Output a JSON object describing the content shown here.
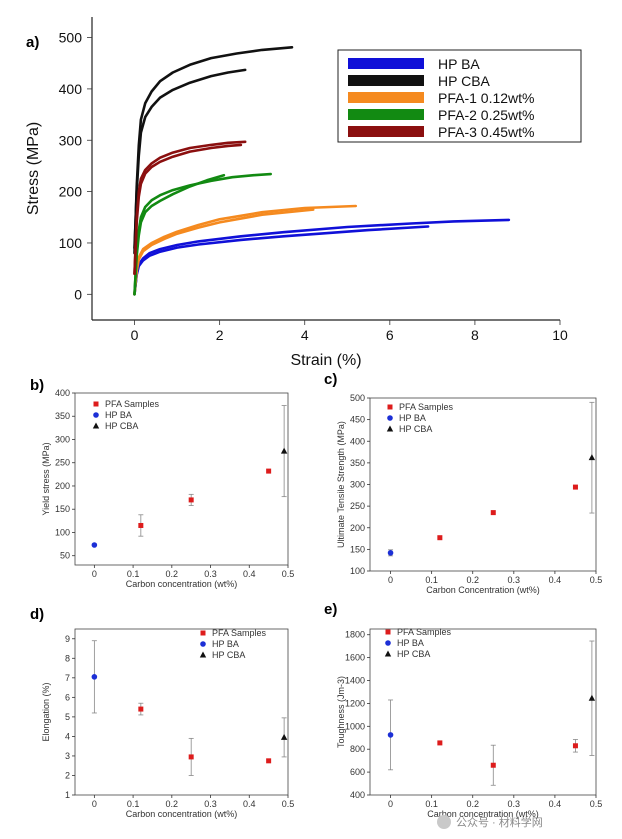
{
  "chart_data": [
    {
      "panel": "a)",
      "type": "line",
      "xlabel": "Strain (%)",
      "ylabel": "Stress (MPa)",
      "xlim": [
        -1,
        10
      ],
      "ylim": [
        -50,
        540
      ],
      "xticks": [
        "0",
        "2",
        "4",
        "6",
        "8",
        "10"
      ],
      "yticks": [
        "0",
        "100",
        "200",
        "300",
        "400",
        "500"
      ],
      "legend_position": "top-right",
      "series": [
        {
          "name": "HP BA",
          "color": "#1010d8",
          "curves": [
            {
              "x": [
                0,
                0.05,
                0.1,
                0.2,
                0.35,
                0.6,
                1.0,
                1.5,
                2.5,
                3.5,
                5.0,
                6.5,
                7.5,
                8.8
              ],
              "y": [
                0,
                40,
                58,
                70,
                80,
                88,
                96,
                103,
                113,
                121,
                131,
                138,
                142,
                145
              ]
            },
            {
              "x": [
                0,
                0.05,
                0.1,
                0.2,
                0.35,
                0.6,
                1.0,
                1.5,
                2.5,
                3.5,
                4.5,
                5.5,
                6.9
              ],
              "y": [
                0,
                38,
                55,
                66,
                75,
                83,
                91,
                97,
                106,
                113,
                119,
                125,
                132
              ]
            }
          ]
        },
        {
          "name": "HP CBA",
          "color": "#111111",
          "curves": [
            {
              "x": [
                0,
                0.05,
                0.1,
                0.15,
                0.25,
                0.4,
                0.6,
                0.9,
                1.3,
                1.8,
                2.4,
                3.0,
                3.7
              ],
              "y": [
                80,
                210,
                290,
                340,
                372,
                395,
                415,
                432,
                447,
                460,
                469,
                476,
                481
              ]
            },
            {
              "x": [
                0,
                0.05,
                0.1,
                0.15,
                0.25,
                0.4,
                0.6,
                0.9,
                1.3,
                1.8,
                2.2,
                2.6
              ],
              "y": [
                90,
                200,
                270,
                315,
                345,
                365,
                383,
                398,
                412,
                425,
                432,
                437
              ]
            }
          ]
        },
        {
          "name": "PFA-1 0.12wt%",
          "color": "#f58a1f",
          "curves": [
            {
              "x": [
                0,
                0.05,
                0.1,
                0.2,
                0.4,
                0.7,
                1.0,
                1.5,
                2.0,
                3.0,
                4.0,
                5.2
              ],
              "y": [
                0,
                50,
                72,
                88,
                100,
                112,
                122,
                135,
                146,
                160,
                168,
                172
              ]
            },
            {
              "x": [
                0,
                0.05,
                0.1,
                0.2,
                0.4,
                0.7,
                1.0,
                1.5,
                2.0,
                3.0,
                4.2
              ],
              "y": [
                0,
                45,
                68,
                84,
                96,
                108,
                118,
                130,
                140,
                155,
                165
              ]
            }
          ]
        },
        {
          "name": "PFA-2 0.25wt%",
          "color": "#128a12",
          "curves": [
            {
              "x": [
                0,
                0.05,
                0.1,
                0.15,
                0.25,
                0.4,
                0.6,
                0.9,
                1.3,
                1.8,
                2.3,
                2.8,
                3.2
              ],
              "y": [
                0,
                80,
                125,
                150,
                170,
                183,
                193,
                203,
                212,
                221,
                228,
                232,
                234
              ]
            },
            {
              "x": [
                0,
                0.05,
                0.1,
                0.15,
                0.25,
                0.4,
                0.6,
                0.9,
                1.3,
                1.7,
                2.1
              ],
              "y": [
                0,
                75,
                115,
                140,
                160,
                172,
                182,
                195,
                210,
                222,
                232
              ]
            }
          ]
        },
        {
          "name": "PFA-3 0.45wt%",
          "color": "#8b0f0f",
          "curves": [
            {
              "x": [
                0,
                0.05,
                0.1,
                0.15,
                0.25,
                0.4,
                0.6,
                0.9,
                1.3,
                1.8,
                2.2,
                2.6
              ],
              "y": [
                40,
                150,
                200,
                225,
                242,
                255,
                266,
                276,
                285,
                291,
                295,
                297
              ]
            },
            {
              "x": [
                0,
                0.05,
                0.1,
                0.15,
                0.25,
                0.4,
                0.6,
                0.9,
                1.3,
                1.8,
                2.2,
                2.5
              ],
              "y": [
                40,
                140,
                190,
                215,
                235,
                248,
                258,
                268,
                278,
                285,
                289,
                291
              ]
            }
          ]
        }
      ]
    },
    {
      "panel": "b)",
      "type": "scatter",
      "xlabel": "Carbon concentration (wt%)",
      "ylabel": "Yield stress (MPa)",
      "xlim": [
        -0.05,
        0.5
      ],
      "ylim": [
        30,
        400
      ],
      "xticks": [
        "0",
        "0.1",
        "0.2",
        "0.3",
        "0.4",
        "0.5"
      ],
      "yticks": [
        "50",
        "100",
        "150",
        "200",
        "250",
        "300",
        "350",
        "400"
      ],
      "legend_position": "top-left",
      "series": [
        {
          "name": "PFA Samples",
          "marker": "square",
          "color": "#dd1c1c",
          "points": [
            {
              "x": 0.12,
              "y": 115,
              "err": 23
            },
            {
              "x": 0.25,
              "y": 170,
              "err": 12
            },
            {
              "x": 0.45,
              "y": 232,
              "err": 0
            }
          ]
        },
        {
          "name": "HP BA",
          "marker": "circle",
          "color": "#1c2fd6",
          "points": [
            {
              "x": 0,
              "y": 73,
              "err": 0
            }
          ]
        },
        {
          "name": "HP CBA",
          "marker": "triangle",
          "color": "#111111",
          "points": [
            {
              "x": 0.49,
              "y": 275,
              "err": 98
            }
          ]
        }
      ]
    },
    {
      "panel": "c)",
      "type": "scatter",
      "xlabel": "Carbon Concentration (wt%)",
      "ylabel": "Ultimate Tensile Strength (MPa)",
      "xlim": [
        -0.05,
        0.5
      ],
      "ylim": [
        100,
        500
      ],
      "xticks": [
        "0",
        "0.1",
        "0.2",
        "0.3",
        "0.4",
        "0.5"
      ],
      "yticks": [
        "100",
        "150",
        "200",
        "250",
        "300",
        "350",
        "400",
        "450",
        "500"
      ],
      "legend_position": "top-left",
      "series": [
        {
          "name": "PFA Samples",
          "marker": "square",
          "color": "#dd1c1c",
          "points": [
            {
              "x": 0.12,
              "y": 177,
              "err": 0
            },
            {
              "x": 0.25,
              "y": 235,
              "err": 0
            },
            {
              "x": 0.45,
              "y": 294,
              "err": 0
            }
          ]
        },
        {
          "name": "HP BA",
          "marker": "circle",
          "color": "#1c2fd6",
          "points": [
            {
              "x": 0,
              "y": 142,
              "err": 7
            }
          ]
        },
        {
          "name": "HP CBA",
          "marker": "triangle",
          "color": "#111111",
          "points": [
            {
              "x": 0.49,
              "y": 362,
              "err": 128
            }
          ]
        }
      ]
    },
    {
      "panel": "d)",
      "type": "scatter",
      "xlabel": "Carbon concentration (wt%)",
      "ylabel": "Elongation (%)",
      "xlim": [
        -0.05,
        0.5
      ],
      "ylim": [
        1,
        9.5
      ],
      "xticks": [
        "0",
        "0.1",
        "0.2",
        "0.3",
        "0.4",
        "0.5"
      ],
      "yticks": [
        "1",
        "2",
        "3",
        "4",
        "5",
        "6",
        "7",
        "8",
        "9"
      ],
      "legend_position": "top-right",
      "series": [
        {
          "name": "PFA Samples",
          "marker": "square",
          "color": "#dd1c1c",
          "points": [
            {
              "x": 0.12,
              "y": 5.4,
              "err": 0.3
            },
            {
              "x": 0.25,
              "y": 2.95,
              "err": 0.95
            },
            {
              "x": 0.45,
              "y": 2.75,
              "err": 0
            }
          ]
        },
        {
          "name": "HP BA",
          "marker": "circle",
          "color": "#1c2fd6",
          "points": [
            {
              "x": 0,
              "y": 7.05,
              "err": 1.85
            }
          ]
        },
        {
          "name": "HP CBA",
          "marker": "triangle",
          "color": "#111111",
          "points": [
            {
              "x": 0.49,
              "y": 3.95,
              "err": 1.0
            }
          ]
        }
      ]
    },
    {
      "panel": "e)",
      "type": "scatter",
      "xlabel": "Carbon concentration (wt%)",
      "ylabel": "Toughness (Jm-3)",
      "xlim": [
        -0.05,
        0.5
      ],
      "ylim": [
        400,
        1850
      ],
      "xticks": [
        "0",
        "0.1",
        "0.2",
        "0.3",
        "0.4",
        "0.5"
      ],
      "yticks": [
        "400",
        "600",
        "800",
        "1000",
        "1200",
        "1400",
        "1600",
        "1800"
      ],
      "legend_position": "top-right",
      "series": [
        {
          "name": "PFA Samples",
          "marker": "square",
          "color": "#dd1c1c",
          "points": [
            {
              "x": 0.12,
              "y": 855,
              "err": 0
            },
            {
              "x": 0.25,
              "y": 660,
              "err": 175
            },
            {
              "x": 0.45,
              "y": 830,
              "err": 55
            }
          ]
        },
        {
          "name": "HP BA",
          "marker": "circle",
          "color": "#1c2fd6",
          "points": [
            {
              "x": 0,
              "y": 925,
              "err": 305
            }
          ]
        },
        {
          "name": "HP CBA",
          "marker": "triangle",
          "color": "#111111",
          "points": [
            {
              "x": 0.49,
              "y": 1245,
              "err": 500
            }
          ]
        }
      ]
    }
  ],
  "watermark": "公众号 · 材料学网"
}
